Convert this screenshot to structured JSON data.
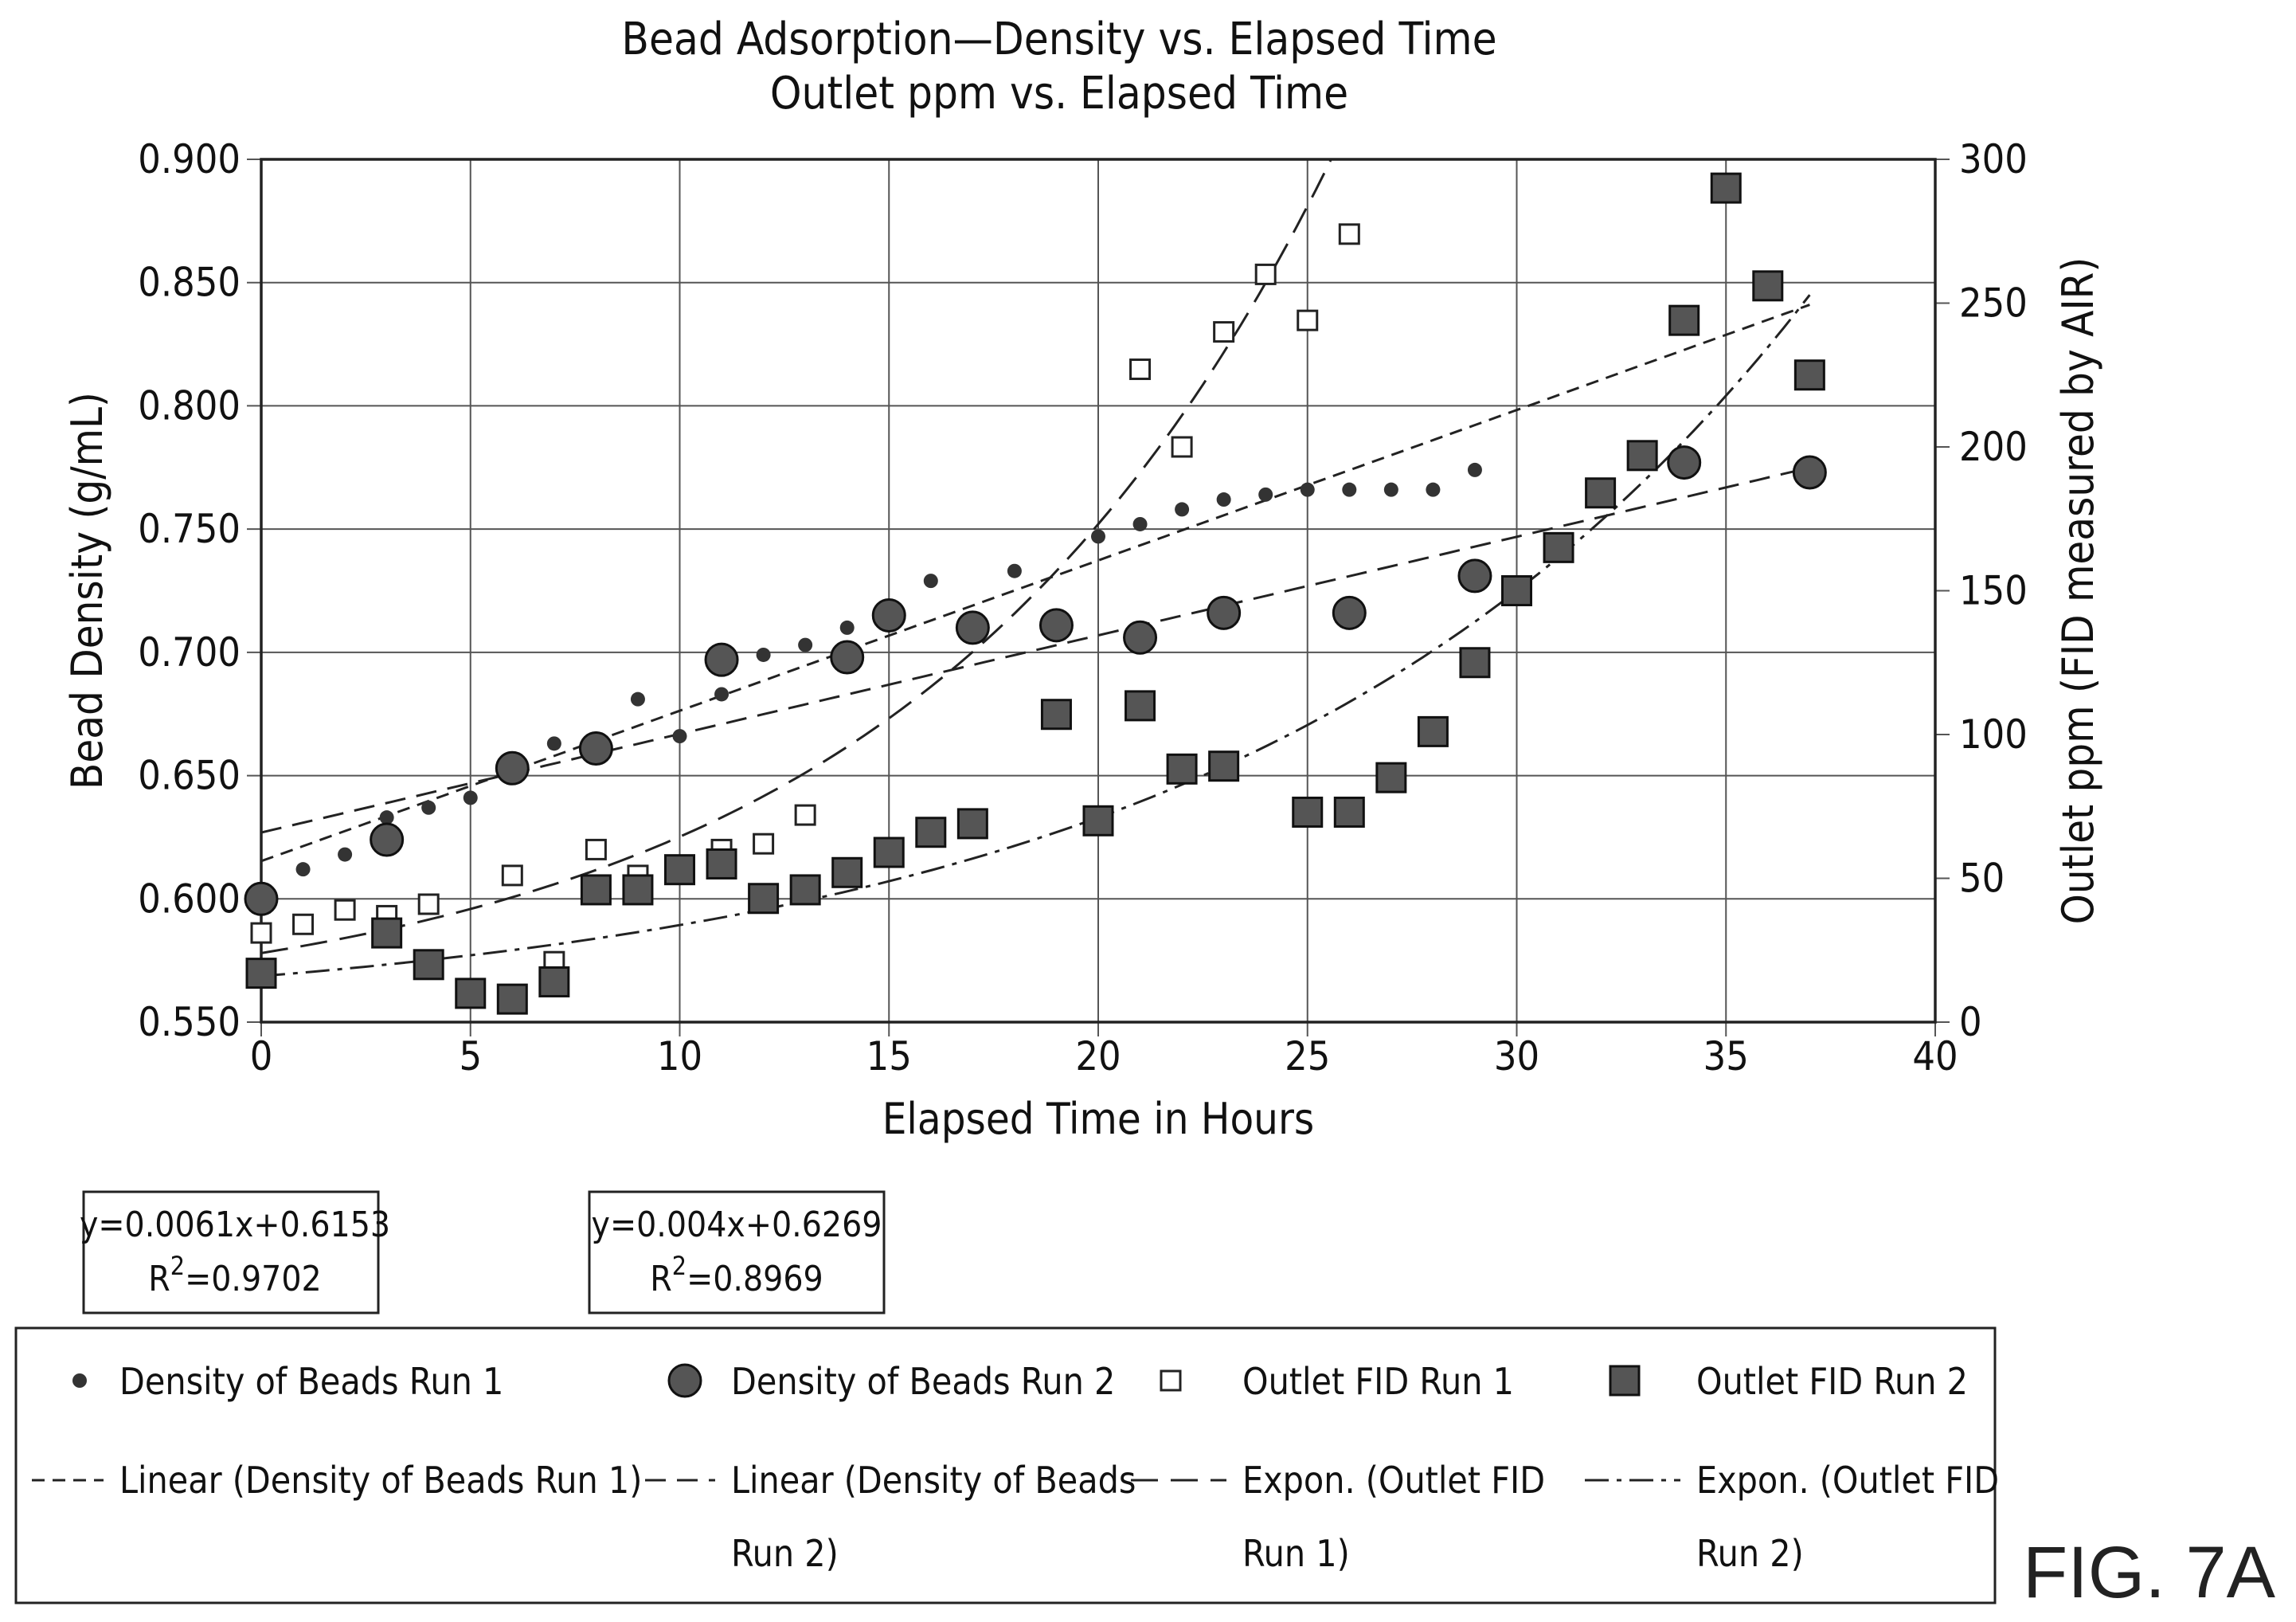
{
  "figure_label": "FIG. 7A",
  "chart_data": {
    "type": "scatter",
    "title": [
      "Bead Adsorption—Density vs. Elapsed Time",
      "Outlet ppm vs. Elapsed Time"
    ],
    "xlabel": "Elapsed Time in Hours",
    "ylabel": "Bead Density (g/mL)",
    "y2label": "Outlet ppm (FID measured by AIR)",
    "xlim": [
      0,
      40
    ],
    "ylim": [
      0.55,
      0.9
    ],
    "y2lim": [
      0,
      300
    ],
    "grid": true,
    "x_ticks": [
      "0",
      "5",
      "10",
      "15",
      "20",
      "25",
      "30",
      "35",
      "40"
    ],
    "y_ticks": [
      "0.550",
      "0.600",
      "0.650",
      "0.700",
      "0.750",
      "0.800",
      "0.850",
      "0.900"
    ],
    "y2_ticks": [
      "0",
      "50",
      "100",
      "150",
      "200",
      "250",
      "300"
    ],
    "legend_position": "bottom",
    "equations": [
      {
        "line1": "y=0.0061x+0.6153",
        "r2_label": "R",
        "r2_sup": "2",
        "r2_value": "=0.9702"
      },
      {
        "line1": "y=0.004x+0.6269",
        "r2_label": "R",
        "r2_sup": "2",
        "r2_value": "=0.8969"
      }
    ],
    "series": [
      {
        "name": "Density of Beads Run 1",
        "axis": "left",
        "marker": "small-dot",
        "x": [
          0,
          1,
          2,
          3,
          4,
          5,
          7,
          8,
          9,
          10,
          11,
          12,
          13,
          14,
          16,
          18,
          20,
          21,
          22,
          23,
          24,
          25,
          26,
          27,
          28,
          29
        ],
        "y": [
          0.603,
          0.612,
          0.618,
          0.633,
          0.637,
          0.641,
          0.663,
          0.665,
          0.681,
          0.666,
          0.683,
          0.699,
          0.703,
          0.71,
          0.729,
          0.733,
          0.747,
          0.752,
          0.758,
          0.762,
          0.764,
          0.766,
          0.766,
          0.766,
          0.766,
          0.774
        ]
      },
      {
        "name": "Density of Beads Run 2",
        "axis": "left",
        "marker": "large-circle",
        "x": [
          0,
          3,
          6,
          8,
          11,
          14,
          15,
          17,
          19,
          21,
          23,
          26,
          29,
          34,
          37
        ],
        "y": [
          0.6,
          0.624,
          0.653,
          0.661,
          0.697,
          0.698,
          0.715,
          0.71,
          0.711,
          0.706,
          0.716,
          0.716,
          0.731,
          0.777,
          0.773
        ]
      },
      {
        "name": "Outlet FID Run 1",
        "axis": "right",
        "marker": "open-square",
        "x": [
          0,
          1,
          2,
          3,
          4,
          6,
          7,
          8,
          9,
          11,
          12,
          13,
          21,
          22,
          23,
          24,
          25,
          26
        ],
        "y": [
          31,
          34,
          39,
          37,
          41,
          51,
          21,
          60,
          51,
          60,
          62,
          72,
          227,
          200,
          240,
          260,
          244,
          274
        ]
      },
      {
        "name": "Outlet FID Run 2",
        "axis": "right",
        "marker": "filled-square",
        "x": [
          0,
          3,
          4,
          5,
          6,
          7,
          8,
          9,
          10,
          11,
          12,
          13,
          14,
          15,
          16,
          17,
          19,
          20,
          21,
          22,
          23,
          25,
          26,
          27,
          28,
          29,
          30,
          31,
          32,
          33,
          34,
          35,
          36,
          37
        ],
        "y": [
          17,
          31,
          20,
          10,
          8,
          14,
          46,
          46,
          53,
          55,
          43,
          46,
          52,
          59,
          66,
          69,
          107,
          70,
          110,
          88,
          89,
          73,
          73,
          85,
          101,
          125,
          150,
          165,
          184,
          197,
          244,
          290,
          256,
          225
        ]
      }
    ],
    "trendlines": [
      {
        "name": "Linear (Density of Beads Run 1)",
        "type": "linear",
        "axis": "left",
        "slope": 0.0061,
        "intercept": 0.6153,
        "x_range": [
          0,
          37
        ],
        "dash": "short"
      },
      {
        "name": "Linear (Density of Beads Run 2)",
        "type": "linear",
        "axis": "left",
        "slope": 0.004,
        "intercept": 0.6269,
        "x_range": [
          0,
          37
        ],
        "dash": "medium"
      },
      {
        "name": "Expon. (Outlet FID Run 1)",
        "type": "exponential",
        "axis": "right",
        "a": 24,
        "b": 0.0988,
        "x_range": [
          0,
          27
        ],
        "dash": "long"
      },
      {
        "name": "Expon. (Outlet FID Run 2)",
        "type": "exponential",
        "axis": "right",
        "a": 16,
        "b": 0.0746,
        "x_range": [
          0,
          37
        ],
        "dash": "dashdot"
      }
    ],
    "legend": [
      {
        "marker": "small-dot",
        "label": "Density of Beads Run 1"
      },
      {
        "marker": "large-circle",
        "label": "Density of Beads Run 2"
      },
      {
        "marker": "open-square",
        "label": "Outlet FID Run 1"
      },
      {
        "marker": "filled-square",
        "label": "Outlet FID Run 2"
      },
      {
        "line": "short",
        "label_lines": [
          "Linear (Density of Beads Run 1)"
        ]
      },
      {
        "line": "medium",
        "label_lines": [
          "Linear (Density of Beads",
          "Run 2)"
        ]
      },
      {
        "line": "long",
        "label_lines": [
          "Expon. (Outlet FID",
          "Run 1)"
        ]
      },
      {
        "line": "dashdot",
        "label_lines": [
          "Expon. (Outlet FID",
          "Run 2)"
        ]
      }
    ]
  }
}
